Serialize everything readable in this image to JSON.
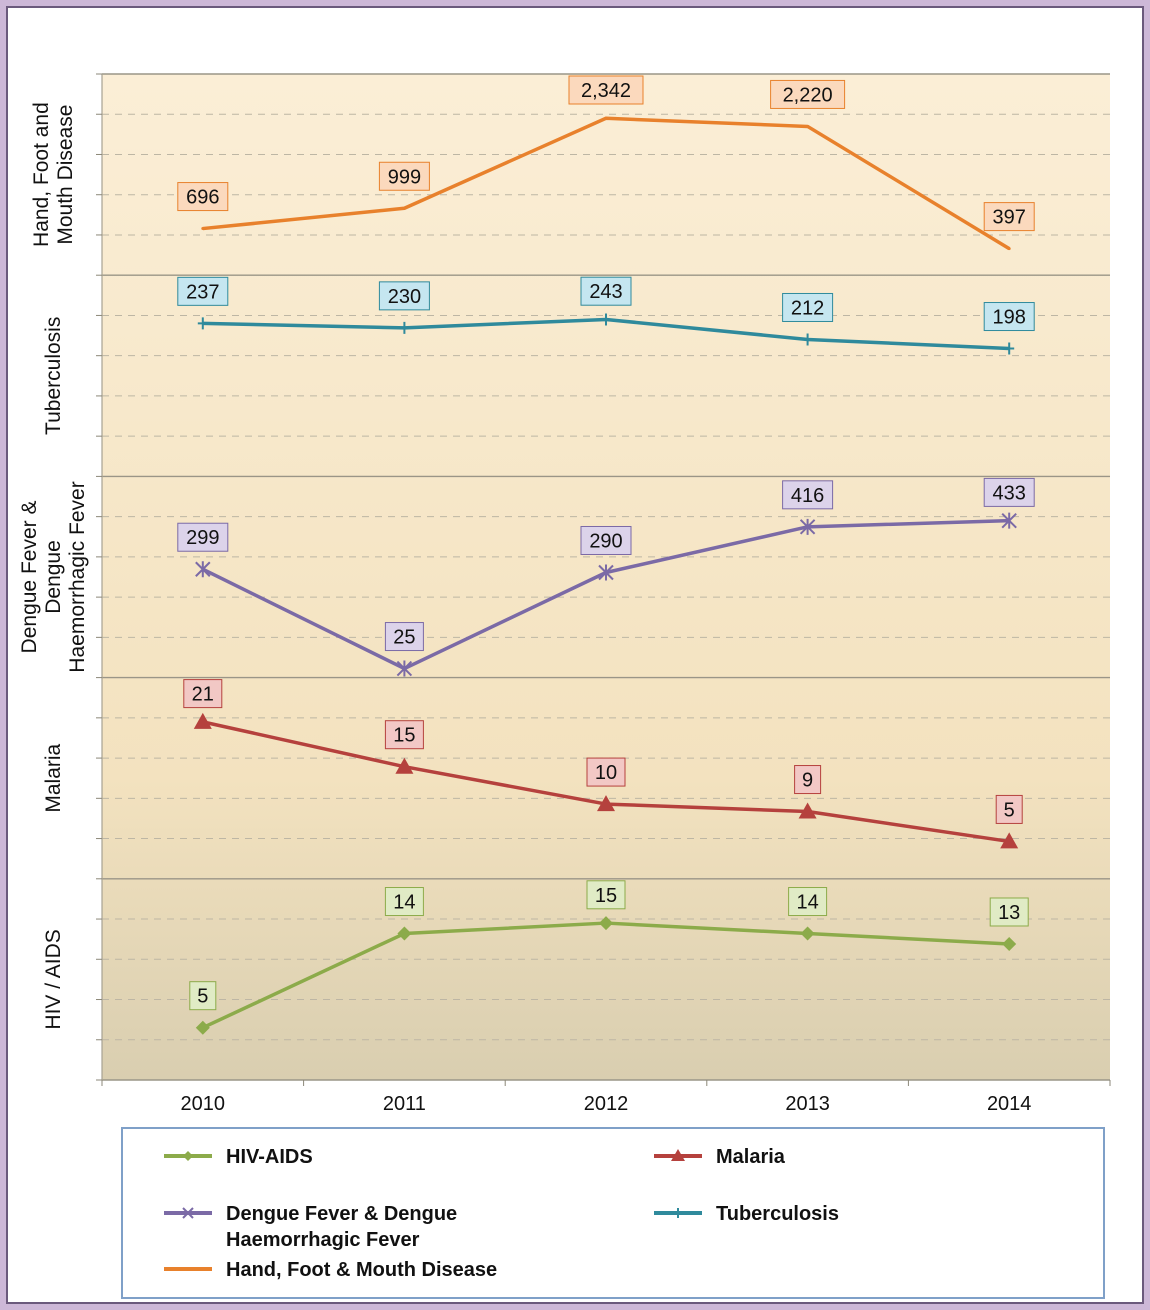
{
  "chart_data": {
    "type": "line",
    "layout_note": "stacked panels",
    "categories": [
      "2010",
      "2011",
      "2012",
      "2013",
      "2014"
    ],
    "panels": [
      {
        "label": "Hand, Foot and Mouth Disease",
        "label_lines": [
          "Hand, Foot and",
          "Mouth Disease"
        ],
        "series": "Hand, Foot & Mouth Disease",
        "values": [
          696,
          999,
          2342,
          2220,
          397
        ],
        "data_labels": [
          "696",
          "999",
          "2,342",
          "2,220",
          "397"
        ],
        "color": "#e8812c",
        "label_fill": "#fbd9bd",
        "marker": "none"
      },
      {
        "label": "Tuberculosis",
        "label_lines": [
          "Tuberculosis"
        ],
        "series": "Tuberculosis",
        "values": [
          237,
          230,
          243,
          212,
          198
        ],
        "data_labels": [
          "237",
          "230",
          "243",
          "212",
          "198"
        ],
        "color": "#2f8a9c",
        "label_fill": "#c5e6f0",
        "marker": "plus"
      },
      {
        "label": "Dengue Fever & Dengue Haemorrhagic Fever",
        "label_lines": [
          "Dengue Fever &",
          "Dengue",
          "Haemorrhagic Fever"
        ],
        "series": "Dengue Fever & Dengue Haemorrhagic Fever",
        "values": [
          299,
          25,
          290,
          416,
          433
        ],
        "data_labels": [
          "299",
          "25",
          "290",
          "416",
          "433"
        ],
        "color": "#7b6aa6",
        "label_fill": "#dcd3ea",
        "marker": "star"
      },
      {
        "label": "Malaria",
        "label_lines": [
          "Malaria"
        ],
        "series": "Malaria",
        "values": [
          21,
          15,
          10,
          9,
          5
        ],
        "data_labels": [
          "21",
          "15",
          "10",
          "9",
          "5"
        ],
        "color": "#b5413d",
        "label_fill": "#f2c8c5",
        "marker": "triangle"
      },
      {
        "label": "HIV / AIDS",
        "label_lines": [
          "HIV / AIDS"
        ],
        "series": "HIV-AIDS",
        "values": [
          5,
          14,
          15,
          14,
          13
        ],
        "data_labels": [
          "5",
          "14",
          "15",
          "14",
          "13"
        ],
        "color": "#8cab4a",
        "label_fill": "#e0ebc5",
        "marker": "diamond"
      }
    ],
    "legend": [
      {
        "name": "HIV-AIDS",
        "name_lines": [
          "HIV-AIDS"
        ],
        "color": "#8cab4a",
        "marker": "diamond"
      },
      {
        "name": "Malaria",
        "name_lines": [
          "Malaria"
        ],
        "color": "#b5413d",
        "marker": "triangle"
      },
      {
        "name": "Dengue Fever & Dengue Haemorrhagic Fever",
        "name_lines": [
          "Dengue Fever  & Dengue",
          "Haemorrhagic Fever"
        ],
        "color": "#7b6aa6",
        "marker": "star"
      },
      {
        "name": "Tuberculosis",
        "name_lines": [
          "Tuberculosis"
        ],
        "color": "#2f8a9c",
        "marker": "plus"
      },
      {
        "name": "Hand, Foot & Mouth Disease",
        "name_lines": [
          "Hand, Foot & Mouth Disease"
        ],
        "color": "#e8812c",
        "marker": "none"
      }
    ],
    "legend_placement": "bottom",
    "grid": true,
    "colors": {
      "plot_bg_top": "#fbeed6",
      "plot_bg_bottom": "#d9ceb0",
      "frame_border": "#6b5a7d",
      "legend_border": "#7fa0c8"
    }
  }
}
